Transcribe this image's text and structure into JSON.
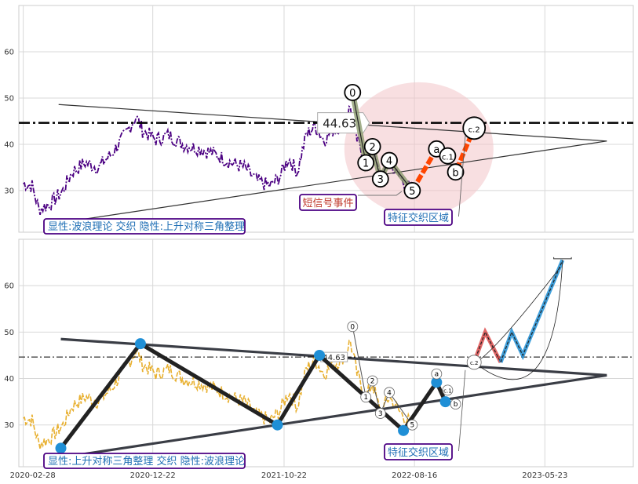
{
  "chart_data": [
    {
      "type": "line",
      "panel": "top",
      "ylim": [
        21,
        70
      ],
      "xlim": [
        -10,
        1380
      ],
      "yticks": [
        30,
        40,
        50,
        60
      ],
      "grid": true,
      "colors": {
        "price": "#4b0082",
        "level": "#000000",
        "triangle": "#333333",
        "impulse_fill": "#8b9b6e",
        "correction": "#ff4500",
        "ellipse": "#f2c4c8"
      },
      "price_series_name": "",
      "level_line": {
        "value": 44.63,
        "label": "44.63"
      },
      "triangle": {
        "upper": [
          [
            80,
            48.6
          ],
          [
            1320,
            40.7
          ]
        ],
        "lower": [
          [
            80,
            23.0
          ],
          [
            1320,
            40.7
          ]
        ]
      },
      "waves": [
        {
          "label": "0",
          "x": 745,
          "y": 51.2
        },
        {
          "label": "1",
          "x": 775,
          "y": 36.0
        },
        {
          "label": "2",
          "x": 790,
          "y": 39.5
        },
        {
          "label": "3",
          "x": 808,
          "y": 32.5
        },
        {
          "label": "4",
          "x": 828,
          "y": 36.5
        },
        {
          "label": "5",
          "x": 880,
          "y": 30.0
        },
        {
          "label": "a",
          "x": 935,
          "y": 39.0
        },
        {
          "label": "c.1",
          "x": 960,
          "y": 37.5
        },
        {
          "label": "b",
          "x": 978,
          "y": 34.0
        },
        {
          "label": "c.2",
          "x": 1020,
          "y": 43.5
        }
      ],
      "annotations": {
        "legend": "显性:波浪理论 交织 隐性:上升对称三角整理",
        "short_signal": "短信号事件",
        "zone": "特征交织区域"
      }
    },
    {
      "type": "line",
      "panel": "bottom",
      "ylim": [
        21,
        70
      ],
      "xlim": [
        -10,
        1380
      ],
      "yticks": [
        30,
        40,
        50,
        60
      ],
      "grid": true,
      "colors": {
        "price": "#e8b030",
        "pivot": "#1f8fd6",
        "zigzag": "#222222",
        "triangle": "#3a3d45",
        "forecast": "#1f8fd6",
        "forecast_alt": "#d94040"
      },
      "level_line": {
        "value": 44.63,
        "label": "44.63"
      },
      "pivots": [
        {
          "x": 85,
          "y": 25.0
        },
        {
          "x": 265,
          "y": 47.5
        },
        {
          "x": 575,
          "y": 30.0
        },
        {
          "x": 670,
          "y": 45.0
        },
        {
          "x": 860,
          "y": 28.8
        },
        {
          "x": 935,
          "y": 39.2
        },
        {
          "x": 955,
          "y": 35.0
        }
      ],
      "triangle": {
        "upper": [
          [
            85,
            48.5
          ],
          [
            1320,
            40.7
          ]
        ],
        "lower": [
          [
            85,
            23.0
          ],
          [
            1320,
            40.7
          ]
        ]
      },
      "waves": [
        {
          "label": "0",
          "x": 745,
          "y": 51.2
        },
        {
          "label": "1",
          "x": 775,
          "y": 36.0
        },
        {
          "label": "2",
          "x": 790,
          "y": 39.5
        },
        {
          "label": "3",
          "x": 808,
          "y": 32.5
        },
        {
          "label": "4",
          "x": 828,
          "y": 37.0
        },
        {
          "label": "5",
          "x": 880,
          "y": 30.0
        },
        {
          "label": "a",
          "x": 935,
          "y": 41.0
        },
        {
          "label": "c.1",
          "x": 960,
          "y": 37.5
        },
        {
          "label": "b",
          "x": 978,
          "y": 34.5
        },
        {
          "label": "c.2",
          "x": 1020,
          "y": 43.5
        }
      ],
      "forecast": {
        "red_path": [
          [
            1020,
            43.5
          ],
          [
            1045,
            50.0
          ],
          [
            1080,
            43.5
          ]
        ],
        "blue_path": [
          [
            1080,
            43.5
          ],
          [
            1105,
            50.0
          ],
          [
            1130,
            45.0
          ],
          [
            1220,
            65.5
          ]
        ],
        "bracket": [
          1200,
          1240,
          65.8
        ]
      },
      "x_ticks": [
        {
          "x": 0,
          "label": "2020-02-28"
        },
        {
          "x": 293,
          "label": "2020-12-22"
        },
        {
          "x": 590,
          "label": "2021-10-22"
        },
        {
          "x": 885,
          "label": "2022-08-16"
        },
        {
          "x": 1180,
          "label": "2023-05-23"
        }
      ],
      "annotations": {
        "legend": "显性:上升对称三角整理 交织 隐性:波浪理论",
        "zone": "特征交织区域"
      }
    }
  ]
}
